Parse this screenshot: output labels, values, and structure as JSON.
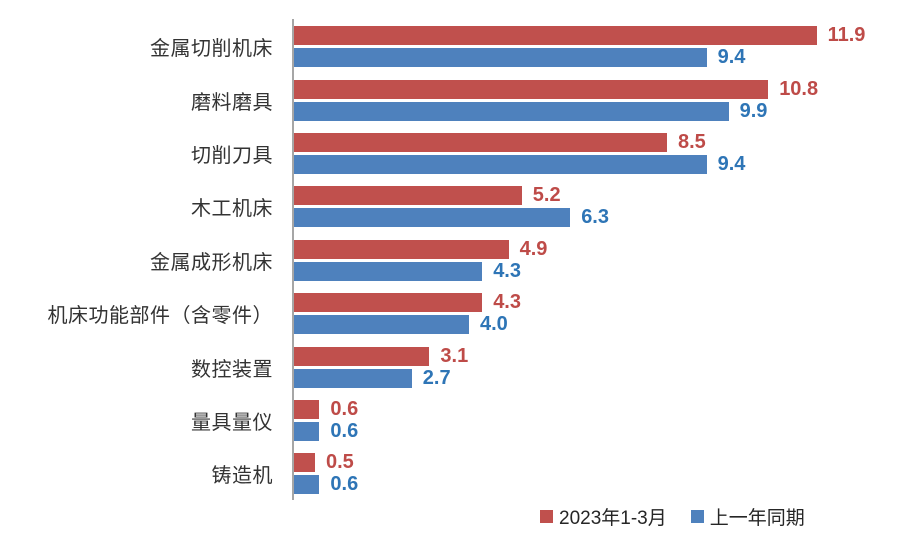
{
  "chart_data": {
    "type": "bar",
    "orientation": "horizontal",
    "title": "",
    "xlabel": "",
    "ylabel": "",
    "grid": false,
    "legend_position": "bottom-right",
    "value_axis_visible": false,
    "categories": [
      "金属切削机床",
      "磨料磨具",
      "切削刀具",
      "木工机床",
      "金属成形机床",
      "机床功能部件（含零件）",
      "数控装置",
      "量具量仪",
      "铸造机"
    ],
    "series": [
      {
        "name": "2023年1-3月",
        "color": "#c0504d",
        "label_color": "#be4b48",
        "values": [
          11.9,
          10.8,
          8.5,
          5.2,
          4.9,
          4.3,
          3.1,
          0.6,
          0.5
        ]
      },
      {
        "name": "上一年同期",
        "color": "#4e81bd",
        "label_color": "#2e75b6",
        "values": [
          9.4,
          9.9,
          9.4,
          6.3,
          4.3,
          4.0,
          2.7,
          0.6,
          0.6
        ]
      }
    ],
    "axis_line_color": "#a6a6a6"
  }
}
